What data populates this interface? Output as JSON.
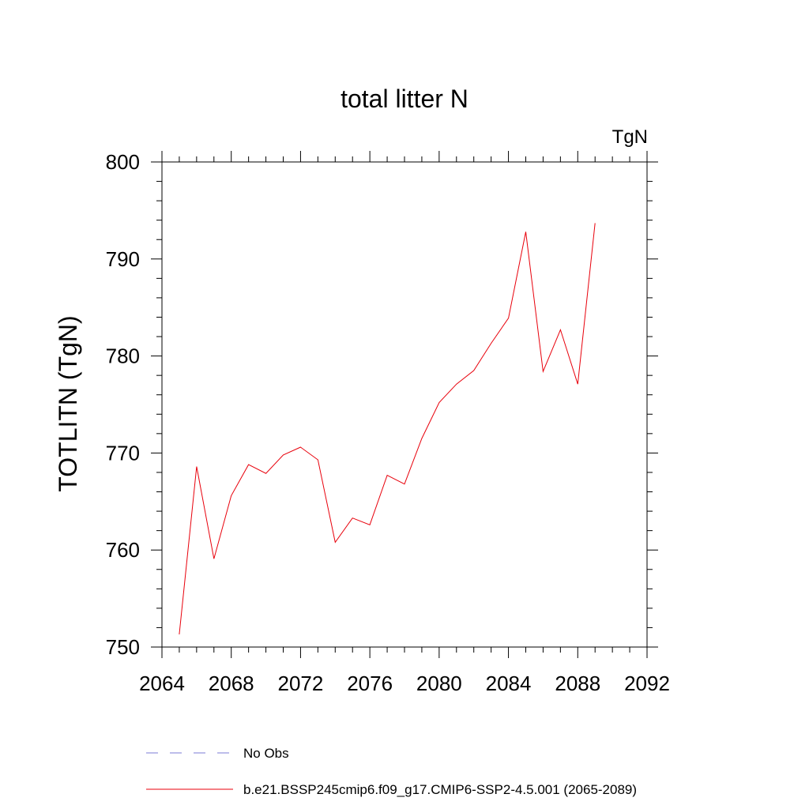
{
  "chart_data": {
    "type": "line",
    "title": "total litter N",
    "units_label": "TgN",
    "ylabel": "TOTLITN  (TgN)",
    "xlabel": "",
    "xlim": [
      2064,
      2092
    ],
    "ylim": [
      750,
      800
    ],
    "xticks": [
      2064,
      2068,
      2072,
      2076,
      2080,
      2084,
      2088,
      2092
    ],
    "yticks": [
      750,
      760,
      770,
      780,
      790,
      800
    ],
    "grid": false,
    "legend_position": "bottom",
    "series": [
      {
        "name": "b.e21.BSSP245cmip6.f09_g17.CMIP6-SSP2-4.5.001 (2065-2089)",
        "color": "#e8000b",
        "style": "solid",
        "x": [
          2065,
          2066,
          2067,
          2068,
          2069,
          2070,
          2071,
          2072,
          2073,
          2074,
          2075,
          2076,
          2077,
          2078,
          2079,
          2080,
          2081,
          2082,
          2083,
          2084,
          2085,
          2086,
          2087,
          2088,
          2089
        ],
        "y": [
          751.3,
          768.6,
          759.1,
          765.6,
          768.8,
          767.9,
          769.8,
          770.6,
          769.3,
          760.8,
          763.3,
          762.6,
          767.7,
          766.8,
          771.5,
          775.2,
          777.1,
          778.5,
          781.3,
          783.9,
          792.8,
          778.4,
          782.7,
          777.1,
          793.7
        ]
      }
    ],
    "legend": [
      {
        "label": "No Obs",
        "color": "#7b7bd6",
        "style": "dashed"
      },
      {
        "label": "b.e21.BSSP245cmip6.f09_g17.CMIP6-SSP2-4.5.001 (2065-2089)",
        "color": "#e8000b",
        "style": "solid"
      }
    ]
  }
}
